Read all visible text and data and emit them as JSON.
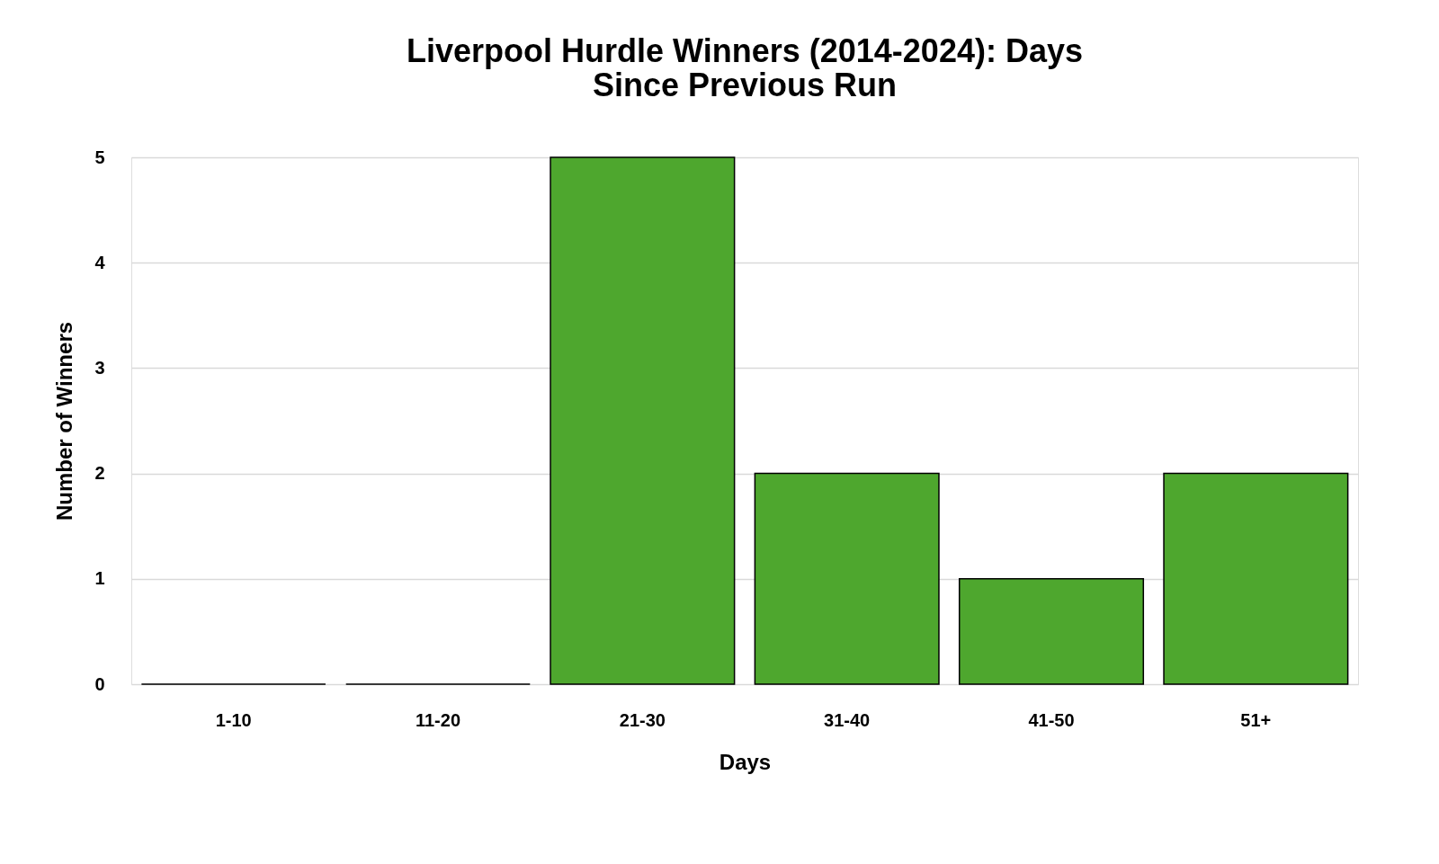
{
  "chart_data": {
    "type": "bar",
    "title": "Liverpool Hurdle Winners (2014-2024): Days Since Previous Run",
    "xlabel": "Days",
    "ylabel": "Number of Winners",
    "categories": [
      "1-10",
      "11-20",
      "21-30",
      "31-40",
      "41-50",
      "51+"
    ],
    "values": [
      0,
      0,
      5,
      2,
      1,
      2
    ],
    "color": "#4ea72e",
    "ylim": [
      0,
      5
    ],
    "yticks": [
      0,
      1,
      2,
      3,
      4,
      5
    ],
    "grid": "y"
  }
}
